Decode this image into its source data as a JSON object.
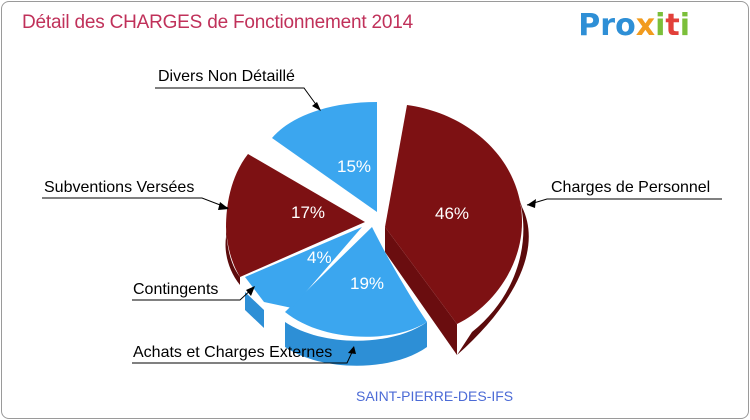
{
  "title": "Détail des CHARGES de Fonctionnement 2014",
  "logo": {
    "p1": "Pro",
    "x": "x",
    "i1": "i",
    "t": "t",
    "i2": "i"
  },
  "town": "SAINT-PIERRE-DES-IFS",
  "colors": {
    "blue": "#3ba6ef",
    "maroon": "#7d1113"
  },
  "chart_data": {
    "type": "pie",
    "title": "Détail des CHARGES de Fonctionnement 2014",
    "subtitle": "SAINT-PIERRE-DES-IFS",
    "slices": [
      {
        "label": "Charges de Personnel",
        "value": 46,
        "pct": "46%"
      },
      {
        "label": "Achats et Charges Externes",
        "value": 19,
        "pct": "19%"
      },
      {
        "label": "Contingents",
        "value": 4,
        "pct": "4%"
      },
      {
        "label": "Subventions Versées",
        "value": 17,
        "pct": "17%"
      },
      {
        "label": "Divers Non Détaillé",
        "value": 15,
        "pct": "15%"
      }
    ]
  }
}
